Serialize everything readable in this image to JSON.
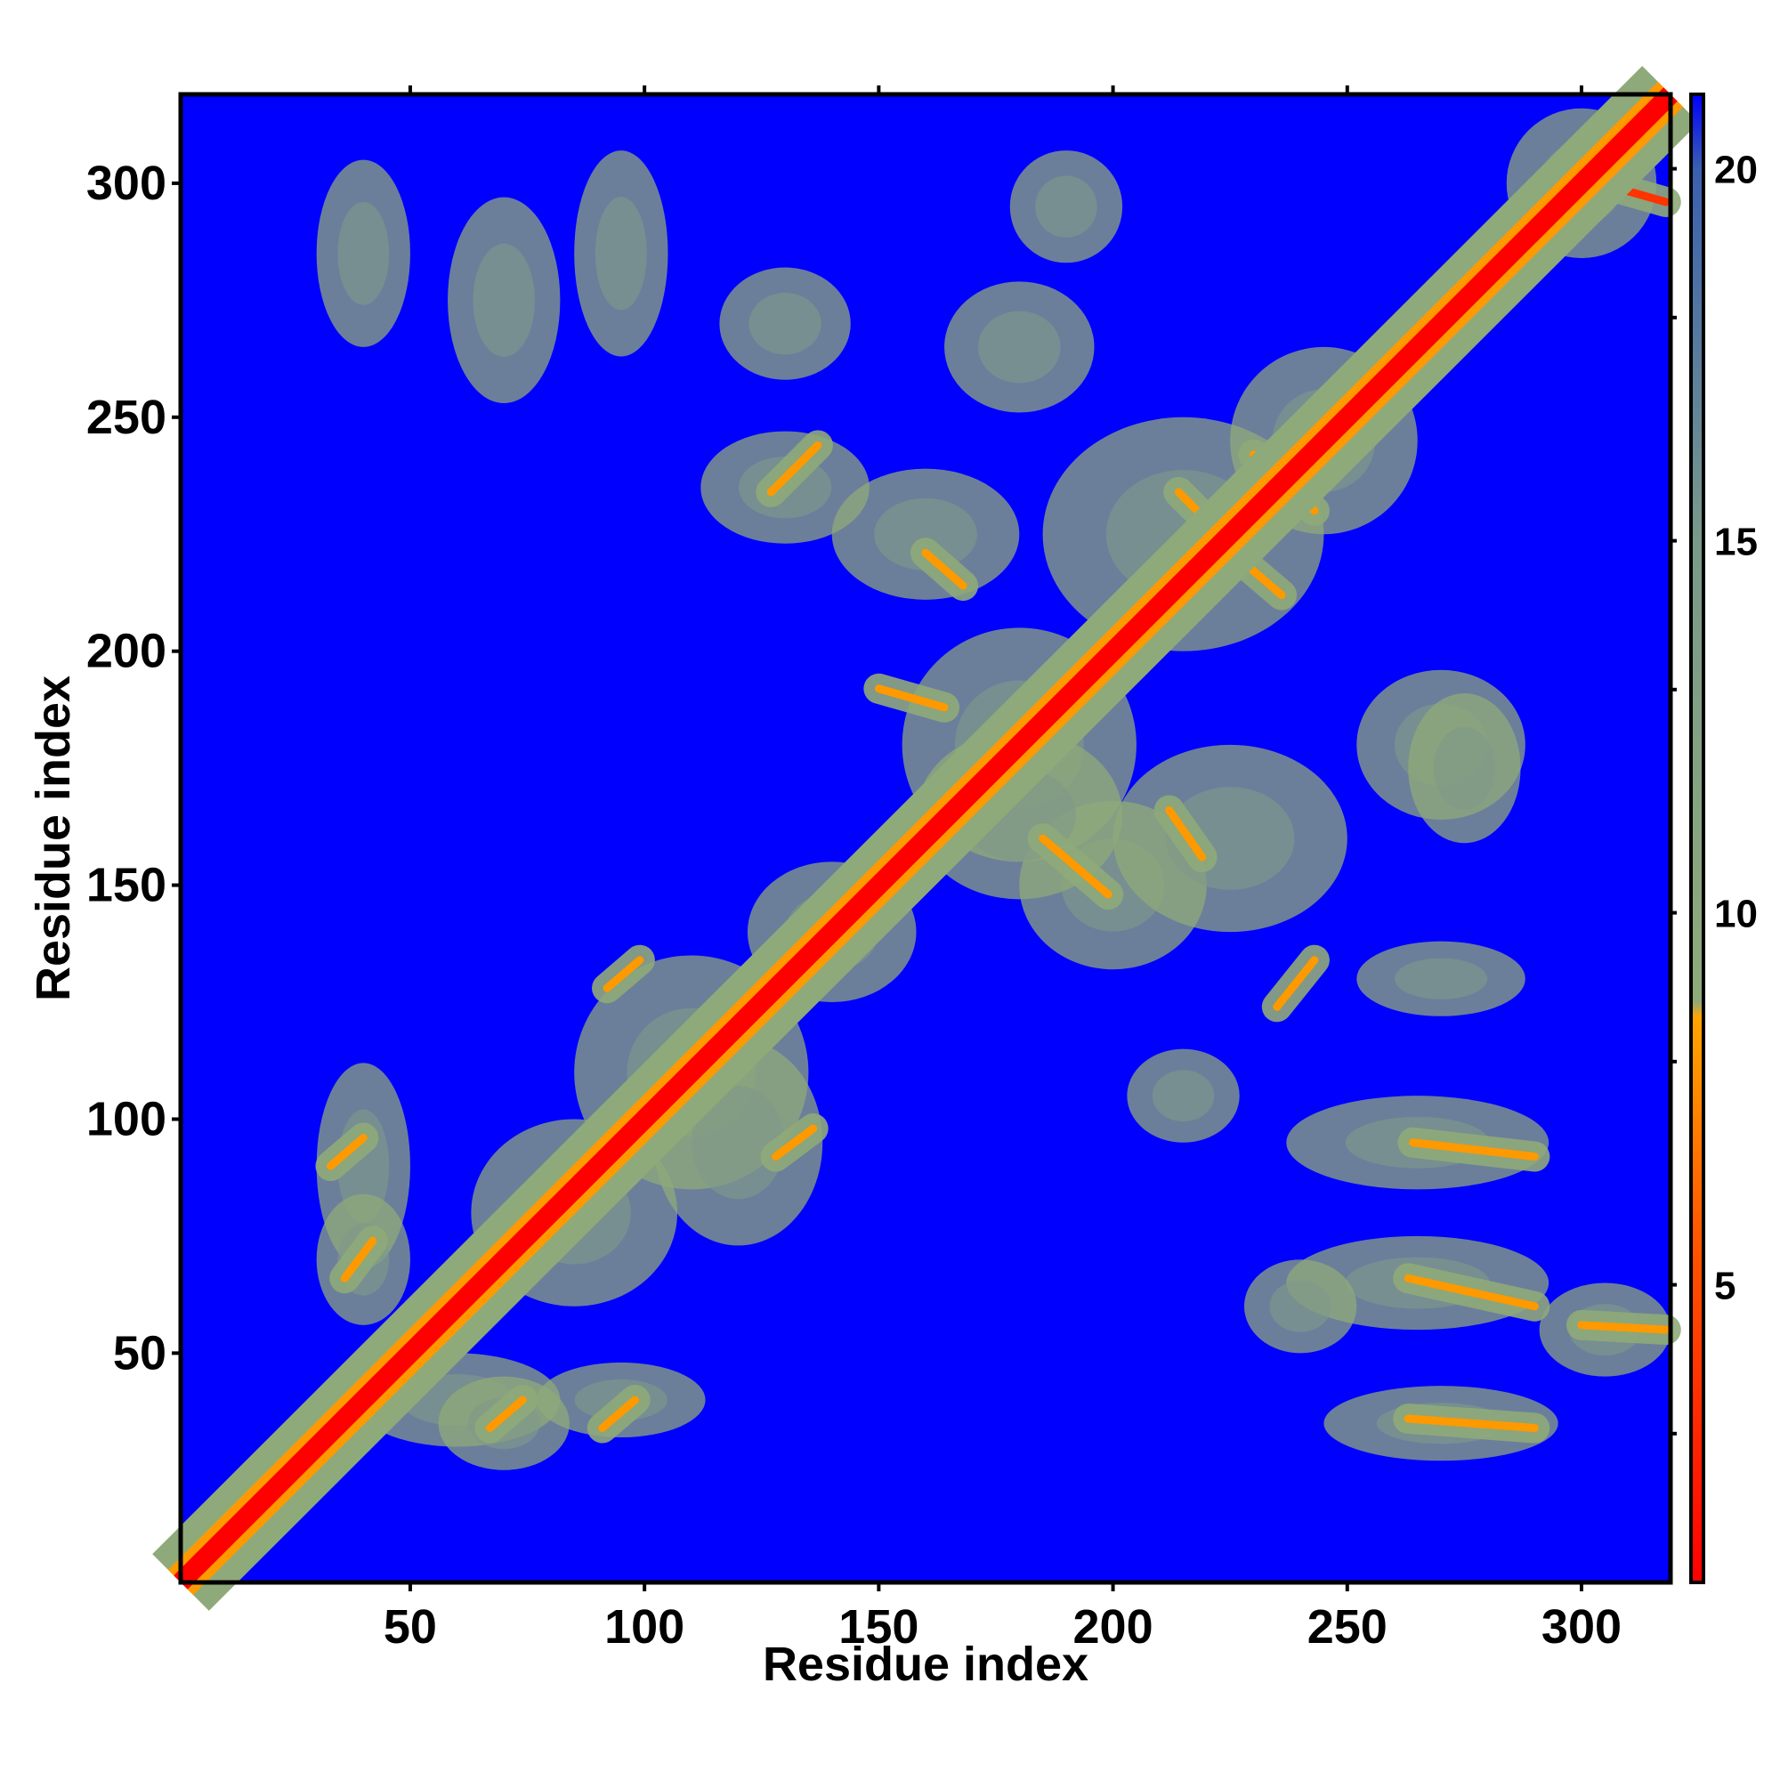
{
  "chart_data": {
    "type": "heatmap",
    "title": "",
    "xlabel": "Residue index",
    "ylabel": "Residue index",
    "xlim": [
      1,
      319
    ],
    "ylim": [
      1,
      319
    ],
    "x_ticks": [
      "50",
      "100",
      "150",
      "200",
      "250",
      "300"
    ],
    "y_ticks": [
      "50",
      "100",
      "150",
      "200",
      "250",
      "300"
    ],
    "colorbar": {
      "ticks": [
        "5",
        "10",
        "15",
        "20"
      ],
      "range": [
        1,
        21
      ],
      "colors": {
        "near": "#ff0000",
        "close": "#ff9900",
        "mid": "#8fa878",
        "far": "#4a6fa0",
        "background": "#0000ff"
      }
    },
    "description_segments": {
      "diagonal_band": {
        "from": [
          1,
          1
        ],
        "to": [
          319,
          319
        ],
        "value": 1
      },
      "contact_lines": [
        {
          "from": [
            33,
            90
          ],
          "to": [
            40,
            96
          ],
          "value": 6
        },
        {
          "from": [
            36,
            66
          ],
          "to": [
            42,
            74
          ],
          "value": 6
        },
        {
          "from": [
            67,
            34
          ],
          "to": [
            74,
            40
          ],
          "value": 6
        },
        {
          "from": [
            91,
            34
          ],
          "to": [
            98,
            40
          ],
          "value": 6
        },
        {
          "from": [
            92,
            128
          ],
          "to": [
            99,
            134
          ],
          "value": 6
        },
        {
          "from": [
            128,
            92
          ],
          "to": [
            136,
            98
          ],
          "value": 6
        },
        {
          "from": [
            127,
            234
          ],
          "to": [
            137,
            244
          ],
          "value": 6
        },
        {
          "from": [
            150,
            192
          ],
          "to": [
            164,
            188
          ],
          "value": 6
        },
        {
          "from": [
            160,
            221
          ],
          "to": [
            168,
            214
          ],
          "value": 6
        },
        {
          "from": [
            185,
            160
          ],
          "to": [
            199,
            148
          ],
          "value": 6
        },
        {
          "from": [
            212,
            166
          ],
          "to": [
            219,
            156
          ],
          "value": 6
        },
        {
          "from": [
            214,
            234
          ],
          "to": [
            226,
            222
          ],
          "value": 6
        },
        {
          "from": [
            222,
            224
          ],
          "to": [
            236,
            212
          ],
          "value": 6
        },
        {
          "from": [
            230,
            242
          ],
          "to": [
            243,
            230
          ],
          "value": 6
        },
        {
          "from": [
            235,
            124
          ],
          "to": [
            243,
            134
          ],
          "value": 6
        },
        {
          "from": [
            264,
            95
          ],
          "to": [
            290,
            92
          ],
          "value": 7
        },
        {
          "from": [
            263,
            66
          ],
          "to": [
            290,
            60
          ],
          "value": 7
        },
        {
          "from": [
            263,
            36
          ],
          "to": [
            290,
            34
          ],
          "value": 7
        },
        {
          "from": [
            300,
            56
          ],
          "to": [
            318,
            55
          ],
          "value": 6
        },
        {
          "from": [
            297,
            302
          ],
          "to": [
            318,
            296
          ],
          "value": 5
        }
      ]
    }
  }
}
